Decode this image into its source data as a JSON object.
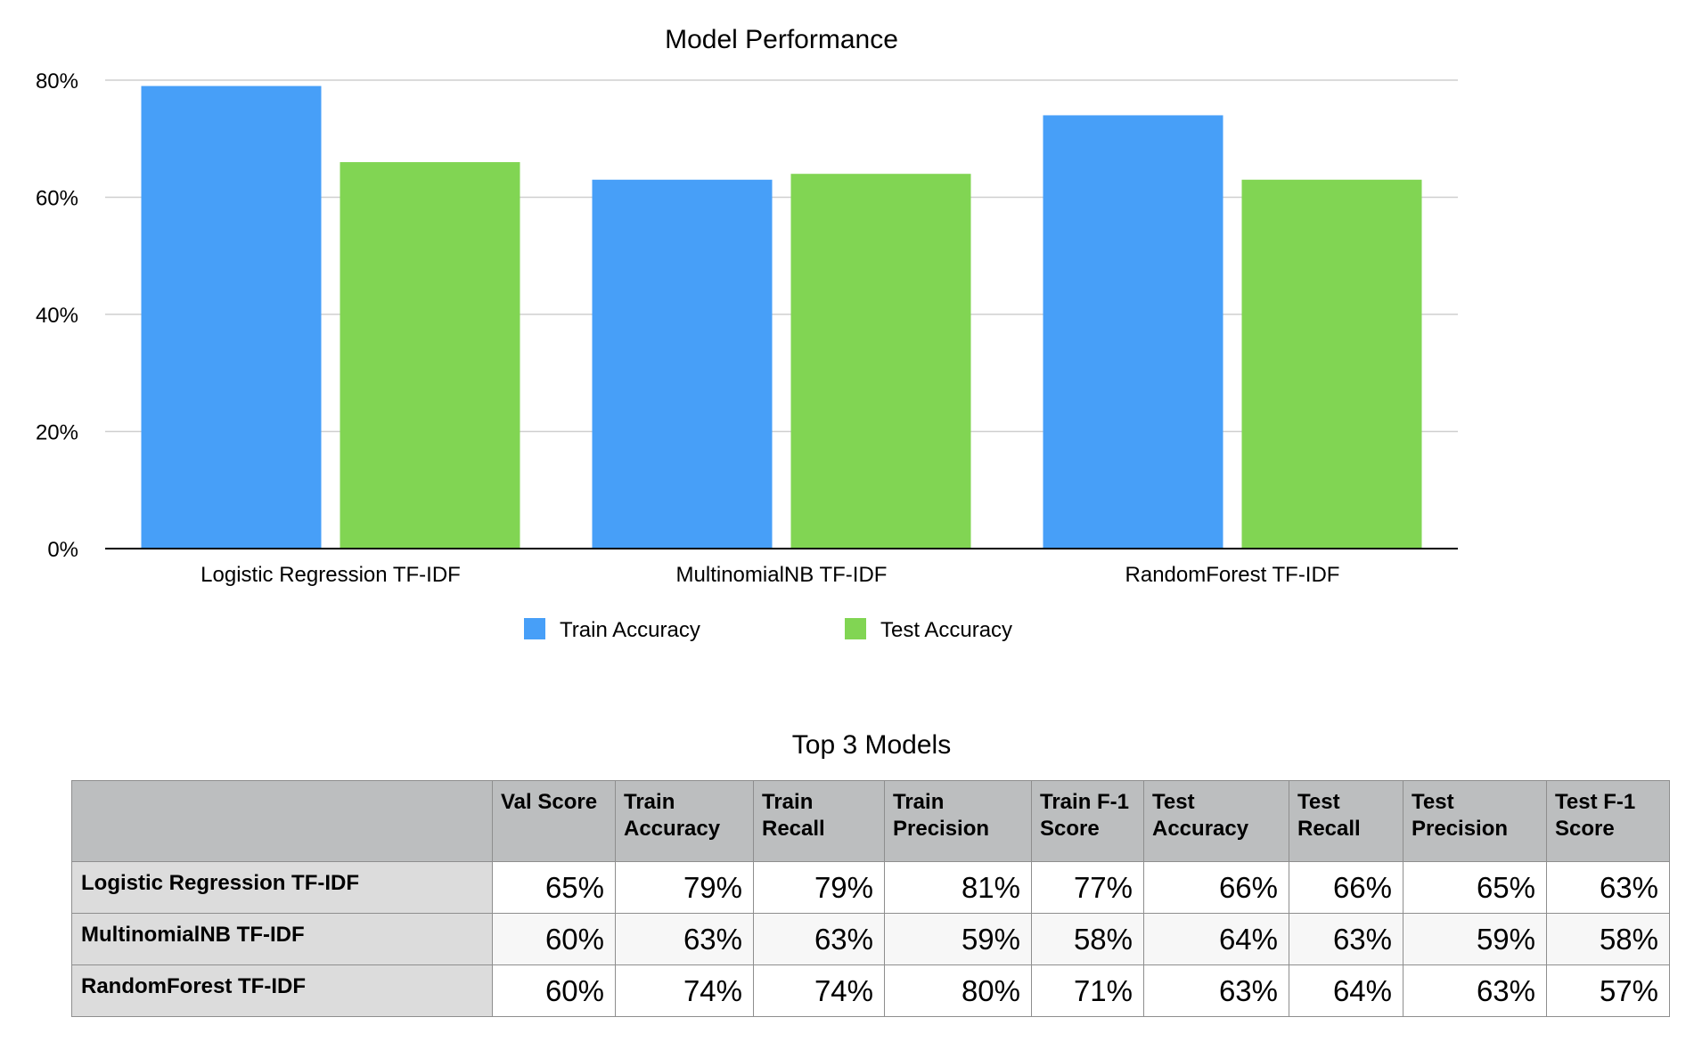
{
  "chart_data": {
    "type": "bar",
    "title": "Model Performance",
    "categories": [
      "Logistic Regression TF-IDF",
      "MultinomialNB TF-IDF",
      "RandomForest TF-IDF"
    ],
    "series": [
      {
        "name": "Train Accuracy",
        "color": "#479ff8",
        "values": [
          79,
          63,
          74
        ]
      },
      {
        "name": "Test Accuracy",
        "color": "#81d553",
        "values": [
          66,
          64,
          63
        ]
      }
    ],
    "ylim": [
      0,
      80
    ],
    "yticks": [
      0,
      20,
      40,
      60,
      80
    ],
    "ytick_format": "%",
    "xlabel": "",
    "ylabel": "",
    "grid": true,
    "legend_position": "bottom-center"
  },
  "table": {
    "title": "Top 3 Models",
    "columns": [
      "",
      "Val Score",
      "Train Accuracy",
      "Train Recall",
      "Train Precision",
      "Train F-1 Score",
      "Test Accuracy",
      "Test Recall",
      "Test Precision",
      "Test F-1 Score"
    ],
    "rows": [
      {
        "label": "Logistic Regression TF-IDF",
        "values": [
          "65%",
          "79%",
          "79%",
          "81%",
          "77%",
          "66%",
          "66%",
          "65%",
          "63%"
        ]
      },
      {
        "label": "MultinomialNB TF-IDF",
        "values": [
          "60%",
          "63%",
          "63%",
          "59%",
          "58%",
          "64%",
          "63%",
          "59%",
          "58%"
        ]
      },
      {
        "label": "RandomForest TF-IDF",
        "values": [
          "60%",
          "74%",
          "74%",
          "80%",
          "71%",
          "63%",
          "64%",
          "63%",
          "57%"
        ]
      }
    ]
  }
}
